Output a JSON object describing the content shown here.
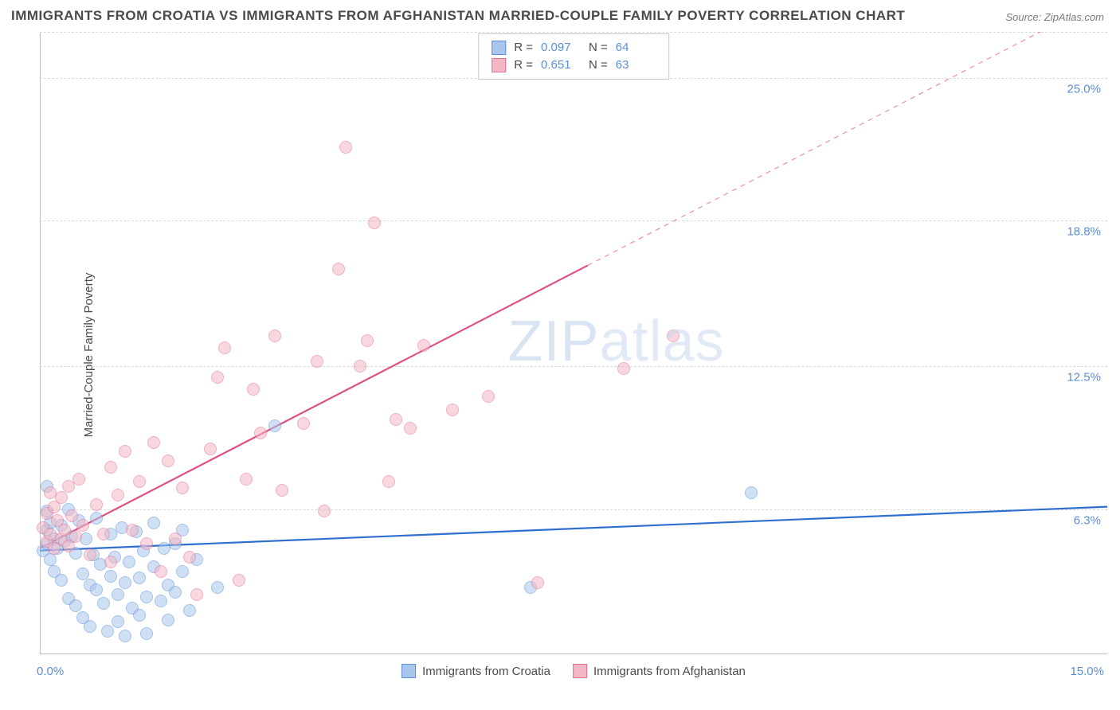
{
  "title": "IMMIGRANTS FROM CROATIA VS IMMIGRANTS FROM AFGHANISTAN MARRIED-COUPLE FAMILY POVERTY CORRELATION CHART",
  "source_label": "Source: ZipAtlas.com",
  "ylabel": "Married-Couple Family Poverty",
  "watermark": {
    "part1": "ZIP",
    "part2": "atlas"
  },
  "chart": {
    "type": "scatter",
    "background_color": "#ffffff",
    "grid_color": "#d8d8d8",
    "axis_color": "#bfbfbf",
    "tick_label_color": "#5b8fd6",
    "label_fontsize": 15,
    "title_fontsize": 17,
    "xlim": [
      0,
      15
    ],
    "ylim": [
      0,
      27
    ],
    "x_ticks": [
      {
        "value": 0,
        "label": "0.0%"
      },
      {
        "value": 15,
        "label": "15.0%"
      }
    ],
    "y_ticks": [
      {
        "value": 6.3,
        "label": "6.3%"
      },
      {
        "value": 12.5,
        "label": "12.5%"
      },
      {
        "value": 18.8,
        "label": "18.8%"
      },
      {
        "value": 25.0,
        "label": "25.0%"
      }
    ],
    "point_radius": 8,
    "point_opacity": 0.55,
    "series": [
      {
        "name": "Immigrants from Croatia",
        "fill_color": "#a9c7ec",
        "stroke_color": "#5b8fd6",
        "line_color": "#2f6fd0",
        "line_width": 2.2,
        "r": "0.097",
        "n": "64",
        "trend": {
          "x1": 0,
          "y1": 4.5,
          "x2": 15,
          "y2": 6.4,
          "dash_from_x": null
        },
        "points": [
          [
            0.05,
            4.5
          ],
          [
            0.1,
            4.8
          ],
          [
            0.1,
            5.4
          ],
          [
            0.1,
            6.2
          ],
          [
            0.1,
            7.3
          ],
          [
            0.15,
            5.7
          ],
          [
            0.15,
            4.1
          ],
          [
            0.2,
            3.6
          ],
          [
            0.2,
            5.0
          ],
          [
            0.25,
            4.6
          ],
          [
            0.3,
            3.2
          ],
          [
            0.3,
            5.6
          ],
          [
            0.35,
            4.9
          ],
          [
            0.4,
            6.3
          ],
          [
            0.4,
            2.4
          ],
          [
            0.45,
            5.1
          ],
          [
            0.5,
            4.4
          ],
          [
            0.5,
            2.1
          ],
          [
            0.55,
            5.8
          ],
          [
            0.6,
            1.6
          ],
          [
            0.6,
            3.5
          ],
          [
            0.65,
            5.0
          ],
          [
            0.7,
            3.0
          ],
          [
            0.7,
            1.2
          ],
          [
            0.75,
            4.3
          ],
          [
            0.8,
            2.8
          ],
          [
            0.8,
            5.9
          ],
          [
            0.85,
            3.9
          ],
          [
            0.9,
            2.2
          ],
          [
            0.95,
            1.0
          ],
          [
            1.0,
            5.2
          ],
          [
            1.0,
            3.4
          ],
          [
            1.05,
            4.2
          ],
          [
            1.1,
            2.6
          ],
          [
            1.1,
            1.4
          ],
          [
            1.15,
            5.5
          ],
          [
            1.2,
            3.1
          ],
          [
            1.2,
            0.8
          ],
          [
            1.25,
            4.0
          ],
          [
            1.3,
            2.0
          ],
          [
            1.35,
            5.3
          ],
          [
            1.4,
            3.3
          ],
          [
            1.4,
            1.7
          ],
          [
            1.45,
            4.5
          ],
          [
            1.5,
            2.5
          ],
          [
            1.5,
            0.9
          ],
          [
            1.6,
            3.8
          ],
          [
            1.6,
            5.7
          ],
          [
            1.7,
            2.3
          ],
          [
            1.75,
            4.6
          ],
          [
            1.8,
            3.0
          ],
          [
            1.8,
            1.5
          ],
          [
            1.9,
            4.8
          ],
          [
            1.9,
            2.7
          ],
          [
            2.0,
            5.4
          ],
          [
            2.0,
            3.6
          ],
          [
            2.1,
            1.9
          ],
          [
            2.2,
            4.1
          ],
          [
            2.5,
            2.9
          ],
          [
            3.3,
            9.9
          ],
          [
            6.9,
            2.9
          ],
          [
            10.0,
            7.0
          ]
        ]
      },
      {
        "name": "Immigrants from Afghanistan",
        "fill_color": "#f3b7c5",
        "stroke_color": "#e37093",
        "line_color": "#e15083",
        "line_width": 2.2,
        "r": "0.651",
        "n": "63",
        "trend": {
          "x1": 0,
          "y1": 4.6,
          "x2": 15,
          "y2": 28.5,
          "dash_from_x": 7.7
        },
        "points": [
          [
            0.05,
            5.5
          ],
          [
            0.1,
            4.9
          ],
          [
            0.1,
            6.1
          ],
          [
            0.15,
            5.2
          ],
          [
            0.15,
            7.0
          ],
          [
            0.2,
            4.6
          ],
          [
            0.2,
            6.4
          ],
          [
            0.25,
            5.8
          ],
          [
            0.3,
            5.0
          ],
          [
            0.3,
            6.8
          ],
          [
            0.35,
            5.4
          ],
          [
            0.4,
            4.7
          ],
          [
            0.4,
            7.3
          ],
          [
            0.45,
            6.0
          ],
          [
            0.5,
            5.1
          ],
          [
            0.55,
            7.6
          ],
          [
            0.6,
            5.6
          ],
          [
            0.7,
            4.3
          ],
          [
            0.8,
            6.5
          ],
          [
            0.9,
            5.2
          ],
          [
            1.0,
            8.1
          ],
          [
            1.0,
            4.0
          ],
          [
            1.1,
            6.9
          ],
          [
            1.2,
            8.8
          ],
          [
            1.3,
            5.4
          ],
          [
            1.4,
            7.5
          ],
          [
            1.5,
            4.8
          ],
          [
            1.6,
            9.2
          ],
          [
            1.7,
            3.6
          ],
          [
            1.8,
            8.4
          ],
          [
            1.9,
            5.0
          ],
          [
            2.0,
            7.2
          ],
          [
            2.1,
            4.2
          ],
          [
            2.2,
            2.6
          ],
          [
            2.4,
            8.9
          ],
          [
            2.5,
            12.0
          ],
          [
            2.6,
            13.3
          ],
          [
            2.8,
            3.2
          ],
          [
            2.9,
            7.6
          ],
          [
            3.0,
            11.5
          ],
          [
            3.1,
            9.6
          ],
          [
            3.3,
            13.8
          ],
          [
            3.4,
            7.1
          ],
          [
            3.7,
            10.0
          ],
          [
            3.9,
            12.7
          ],
          [
            4.0,
            6.2
          ],
          [
            4.2,
            16.7
          ],
          [
            4.3,
            22.0
          ],
          [
            4.5,
            12.5
          ],
          [
            4.6,
            13.6
          ],
          [
            4.7,
            18.7
          ],
          [
            4.9,
            7.5
          ],
          [
            5.0,
            10.2
          ],
          [
            5.2,
            9.8
          ],
          [
            5.4,
            13.4
          ],
          [
            5.8,
            10.6
          ],
          [
            6.3,
            11.2
          ],
          [
            7.0,
            3.1
          ],
          [
            8.2,
            12.4
          ],
          [
            8.9,
            13.8
          ]
        ]
      }
    ]
  },
  "legend_top": {
    "r_label": "R =",
    "n_label": "N ="
  },
  "legend_bottom": {
    "items": [
      "Immigrants from Croatia",
      "Immigrants from Afghanistan"
    ]
  }
}
